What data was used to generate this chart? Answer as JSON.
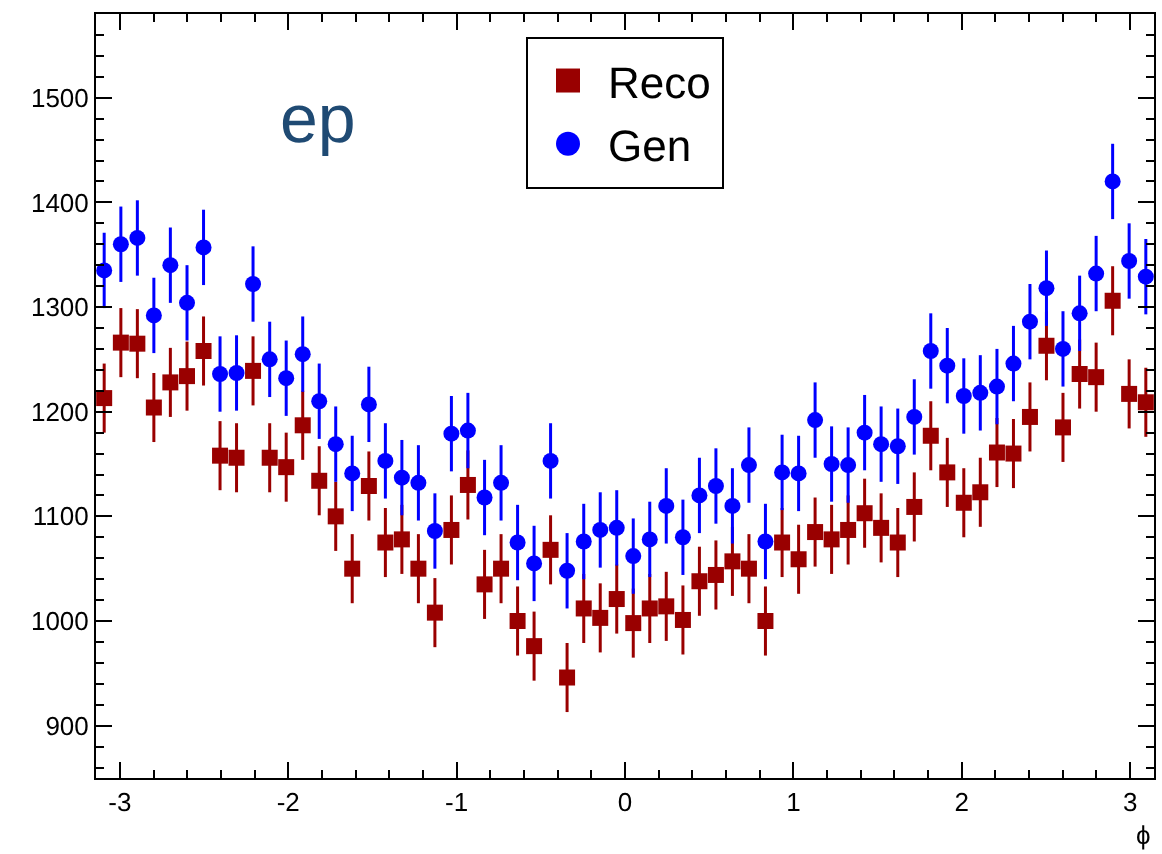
{
  "chart_data": {
    "type": "scatter",
    "xlabel": "ϕ",
    "annotations": [
      "ep"
    ],
    "x": [
      -3.093,
      -2.994,
      -2.896,
      -2.798,
      -2.7,
      -2.601,
      -2.503,
      -2.405,
      -2.307,
      -2.209,
      -2.11,
      -2.012,
      -1.914,
      -1.816,
      -1.718,
      -1.62,
      -1.521,
      -1.423,
      -1.325,
      -1.227,
      -1.129,
      -1.031,
      -0.933,
      -0.834,
      -0.736,
      -0.638,
      -0.54,
      -0.442,
      -0.344,
      -0.245,
      -0.147,
      -0.049,
      0.049,
      0.147,
      0.245,
      0.344,
      0.442,
      0.54,
      0.638,
      0.736,
      0.834,
      0.933,
      1.031,
      1.129,
      1.227,
      1.325,
      1.423,
      1.521,
      1.62,
      1.718,
      1.816,
      1.914,
      2.012,
      2.11,
      2.209,
      2.307,
      2.405,
      2.503,
      2.601,
      2.7,
      2.798,
      2.896,
      2.994,
      3.093
    ],
    "series": [
      {
        "name": "Reco",
        "color": "#990000",
        "marker": "square",
        "values": [
          1213,
          1266,
          1265,
          1204,
          1228,
          1234,
          1258,
          1158,
          1156,
          1239,
          1156,
          1147,
          1187,
          1134,
          1100,
          1050,
          1129,
          1075,
          1078,
          1050,
          1008,
          1087,
          1130,
          1035,
          1050,
          1000,
          976,
          1068,
          946,
          1012,
          1003,
          1021,
          998,
          1012,
          1014,
          1001,
          1038,
          1044,
          1057,
          1050,
          1000,
          1075,
          1059,
          1085,
          1078,
          1087,
          1103,
          1089,
          1075,
          1109,
          1177,
          1142,
          1113,
          1123,
          1161,
          1160,
          1195,
          1263,
          1185,
          1236,
          1233,
          1306,
          1217,
          1209
        ],
        "errors": [
          33,
          33,
          33,
          33,
          33,
          33,
          33,
          33,
          33,
          33,
          33,
          33,
          33,
          33,
          33,
          33,
          33,
          33,
          33,
          33,
          33,
          33,
          33,
          33,
          33,
          33,
          33,
          33,
          33,
          33,
          33,
          33,
          33,
          33,
          33,
          33,
          33,
          33,
          33,
          33,
          33,
          33,
          33,
          33,
          33,
          33,
          33,
          33,
          33,
          33,
          33,
          33,
          33,
          33,
          33,
          33,
          33,
          33,
          33,
          33,
          33,
          33,
          33,
          33
        ]
      },
      {
        "name": "Gen",
        "color": "#0000ff",
        "marker": "circle",
        "values": [
          1335,
          1360,
          1366,
          1292,
          1340,
          1304,
          1357,
          1236,
          1237,
          1322,
          1250,
          1232,
          1255,
          1210,
          1169,
          1141,
          1207,
          1153,
          1137,
          1132,
          1086,
          1179,
          1182,
          1118,
          1132,
          1075,
          1055,
          1153,
          1048,
          1076,
          1087,
          1089,
          1062,
          1078,
          1110,
          1080,
          1120,
          1129,
          1110,
          1149,
          1076,
          1142,
          1141,
          1192,
          1150,
          1149,
          1180,
          1169,
          1167,
          1195,
          1258,
          1244,
          1215,
          1218,
          1224,
          1246,
          1286,
          1318,
          1260,
          1294,
          1332,
          1420,
          1344,
          1329
        ],
        "errors": [
          36,
          36,
          36,
          36,
          36,
          36,
          36,
          36,
          36,
          36,
          36,
          36,
          36,
          36,
          36,
          36,
          36,
          36,
          36,
          36,
          36,
          36,
          36,
          36,
          36,
          36,
          36,
          36,
          36,
          36,
          36,
          36,
          36,
          36,
          36,
          36,
          36,
          36,
          36,
          36,
          36,
          36,
          36,
          36,
          36,
          36,
          36,
          36,
          36,
          36,
          36,
          36,
          36,
          36,
          36,
          36,
          36,
          36,
          36,
          36,
          36,
          36,
          36,
          36
        ]
      }
    ],
    "xlim": [
      -3.1416,
      3.1416
    ],
    "ylim": [
      850,
      1580
    ],
    "xticks": [
      -3,
      -2,
      -1,
      0,
      1,
      2,
      3
    ],
    "yticks": [
      900,
      1000,
      1100,
      1200,
      1300,
      1400,
      1500
    ],
    "legend": "top"
  }
}
